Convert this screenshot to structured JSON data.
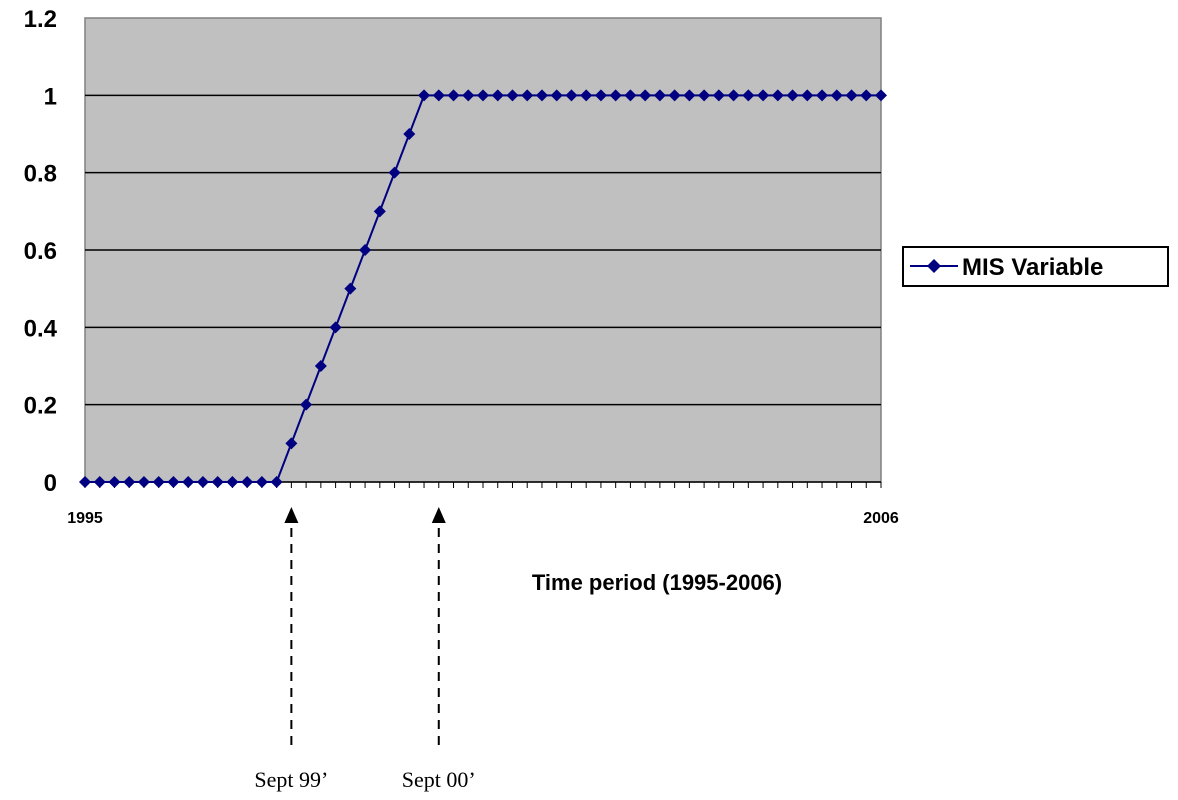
{
  "chart_data": {
    "type": "line",
    "x_tick_labels": [
      "1995",
      "2006"
    ],
    "xlabel": "Time period (1995-2006)",
    "ylabel": "",
    "ylim": [
      0,
      1.2
    ],
    "y_ticks": [
      "0",
      "0.2",
      "0.4",
      "0.6",
      "0.8",
      "1",
      "1.2"
    ],
    "grid": "horizontal",
    "legend_position": "right",
    "series": [
      {
        "name": "MIS Variable",
        "values": [
          0,
          0,
          0,
          0,
          0,
          0,
          0,
          0,
          0,
          0,
          0,
          0,
          0,
          0,
          0.1,
          0.2,
          0.3,
          0.4,
          0.5,
          0.6,
          0.7,
          0.8,
          0.9,
          1,
          1,
          1,
          1,
          1,
          1,
          1,
          1,
          1,
          1,
          1,
          1,
          1,
          1,
          1,
          1,
          1,
          1,
          1,
          1,
          1,
          1,
          1,
          1,
          1,
          1,
          1,
          1,
          1,
          1,
          1,
          1
        ]
      }
    ],
    "annotations": [
      {
        "text": "Sept 99’",
        "point_index": 14
      },
      {
        "text": "Sept 00’",
        "point_index": 24
      }
    ],
    "colors": {
      "plot_background": "#c0c0c0",
      "series": "#000080",
      "gridline": "#000000"
    }
  }
}
